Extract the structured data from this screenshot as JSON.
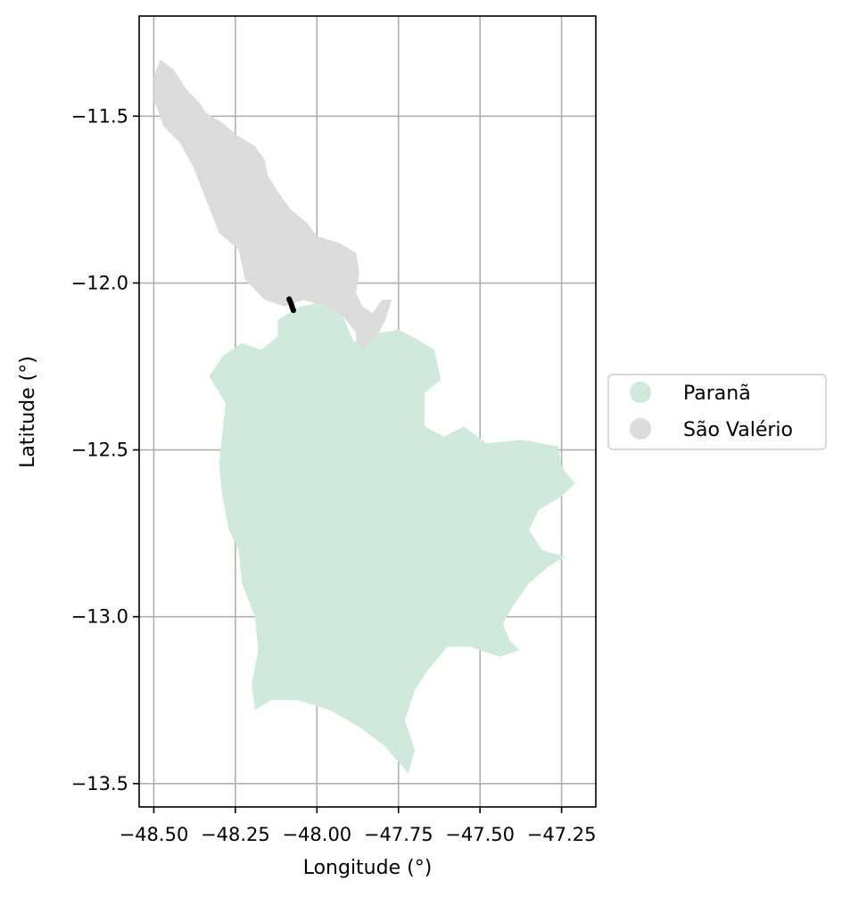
{
  "chart_data": {
    "type": "map",
    "xlabel": "Longitude (°)",
    "ylabel": "Latitude (°)",
    "xlim": [
      -48.545,
      -47.145
    ],
    "ylim": [
      -13.57,
      -11.2
    ],
    "grid": true,
    "legend_placement": "right",
    "x_ticks": [
      {
        "value": -48.5,
        "label": "−48.50"
      },
      {
        "value": -48.25,
        "label": "−48.25"
      },
      {
        "value": -48.0,
        "label": "−48.00"
      },
      {
        "value": -47.75,
        "label": "−47.75"
      },
      {
        "value": -47.5,
        "label": "−47.50"
      },
      {
        "value": -47.25,
        "label": "−47.25"
      }
    ],
    "y_ticks": [
      {
        "value": -11.5,
        "label": "−11.5"
      },
      {
        "value": -12.0,
        "label": "−12.0"
      },
      {
        "value": -12.5,
        "label": "−12.5"
      },
      {
        "value": -13.0,
        "label": "−13.0"
      },
      {
        "value": -13.5,
        "label": "−13.5"
      }
    ],
    "legend": [
      {
        "name": "Paranã",
        "color": "#cfeadd"
      },
      {
        "name": "São Valério",
        "color": "#dcdcdc"
      }
    ],
    "regions": [
      {
        "name": "São Valério",
        "color": "#dcdcdc",
        "polygon": [
          [
            -48.48,
            -11.33
          ],
          [
            -48.44,
            -11.36
          ],
          [
            -48.4,
            -11.42
          ],
          [
            -48.36,
            -11.46
          ],
          [
            -48.34,
            -11.49
          ],
          [
            -48.29,
            -11.52
          ],
          [
            -48.24,
            -11.56
          ],
          [
            -48.19,
            -11.59
          ],
          [
            -48.16,
            -11.63
          ],
          [
            -48.15,
            -11.68
          ],
          [
            -48.11,
            -11.74
          ],
          [
            -48.08,
            -11.78
          ],
          [
            -48.03,
            -11.82
          ],
          [
            -48.0,
            -11.86
          ],
          [
            -47.93,
            -11.88
          ],
          [
            -47.88,
            -11.91
          ],
          [
            -47.87,
            -11.97
          ],
          [
            -47.88,
            -12.03
          ],
          [
            -47.86,
            -12.07
          ],
          [
            -47.83,
            -12.09
          ],
          [
            -47.8,
            -12.05
          ],
          [
            -47.77,
            -12.05
          ],
          [
            -47.79,
            -12.11
          ],
          [
            -47.82,
            -12.17
          ],
          [
            -47.84,
            -12.22
          ],
          [
            -47.88,
            -12.21
          ],
          [
            -47.88,
            -12.15
          ],
          [
            -47.92,
            -12.1
          ],
          [
            -47.98,
            -12.07
          ],
          [
            -48.04,
            -12.05
          ],
          [
            -48.1,
            -12.07
          ],
          [
            -48.16,
            -12.05
          ],
          [
            -48.22,
            -11.99
          ],
          [
            -48.24,
            -11.9
          ],
          [
            -48.3,
            -11.85
          ],
          [
            -48.34,
            -11.75
          ],
          [
            -48.38,
            -11.65
          ],
          [
            -48.42,
            -11.58
          ],
          [
            -48.47,
            -11.53
          ],
          [
            -48.5,
            -11.45
          ],
          [
            -48.5,
            -11.38
          ]
        ]
      },
      {
        "name": "Paranã",
        "color": "#cfeadd",
        "polygon": [
          [
            -48.12,
            -12.11
          ],
          [
            -48.05,
            -12.07
          ],
          [
            -47.99,
            -12.06
          ],
          [
            -47.92,
            -12.1
          ],
          [
            -47.89,
            -12.17
          ],
          [
            -47.86,
            -12.2
          ],
          [
            -47.81,
            -12.15
          ],
          [
            -47.75,
            -12.14
          ],
          [
            -47.69,
            -12.17
          ],
          [
            -47.64,
            -12.2
          ],
          [
            -47.62,
            -12.29
          ],
          [
            -47.67,
            -12.33
          ],
          [
            -47.67,
            -12.43
          ],
          [
            -47.61,
            -12.46
          ],
          [
            -47.55,
            -12.43
          ],
          [
            -47.48,
            -12.48
          ],
          [
            -47.37,
            -12.47
          ],
          [
            -47.26,
            -12.49
          ],
          [
            -47.25,
            -12.55
          ],
          [
            -47.21,
            -12.6
          ],
          [
            -47.25,
            -12.64
          ],
          [
            -47.32,
            -12.68
          ],
          [
            -47.35,
            -12.74
          ],
          [
            -47.31,
            -12.8
          ],
          [
            -47.24,
            -12.82
          ],
          [
            -47.29,
            -12.85
          ],
          [
            -47.35,
            -12.9
          ],
          [
            -47.4,
            -12.97
          ],
          [
            -47.43,
            -13.02
          ],
          [
            -47.41,
            -13.07
          ],
          [
            -47.38,
            -13.1
          ],
          [
            -47.44,
            -13.12
          ],
          [
            -47.53,
            -13.09
          ],
          [
            -47.6,
            -13.09
          ],
          [
            -47.66,
            -13.16
          ],
          [
            -47.7,
            -13.22
          ],
          [
            -47.73,
            -13.31
          ],
          [
            -47.7,
            -13.4
          ],
          [
            -47.72,
            -13.47
          ],
          [
            -47.79,
            -13.39
          ],
          [
            -47.87,
            -13.33
          ],
          [
            -47.96,
            -13.28
          ],
          [
            -48.06,
            -13.25
          ],
          [
            -48.14,
            -13.25
          ],
          [
            -48.19,
            -13.28
          ],
          [
            -48.2,
            -13.2
          ],
          [
            -48.18,
            -13.1
          ],
          [
            -48.19,
            -13.0
          ],
          [
            -48.23,
            -12.9
          ],
          [
            -48.24,
            -12.8
          ],
          [
            -48.27,
            -12.74
          ],
          [
            -48.29,
            -12.64
          ],
          [
            -48.3,
            -12.54
          ],
          [
            -48.29,
            -12.45
          ],
          [
            -48.28,
            -12.36
          ],
          [
            -48.33,
            -12.28
          ],
          [
            -48.29,
            -12.22
          ],
          [
            -48.23,
            -12.18
          ],
          [
            -48.17,
            -12.2
          ],
          [
            -48.12,
            -12.16
          ]
        ]
      }
    ],
    "features": [
      {
        "name": "feature-line",
        "color": "#000000",
        "line": [
          [
            -48.085,
            -12.048
          ],
          [
            -48.08,
            -12.06
          ],
          [
            -48.076,
            -12.072
          ],
          [
            -48.072,
            -12.082
          ]
        ]
      }
    ]
  }
}
